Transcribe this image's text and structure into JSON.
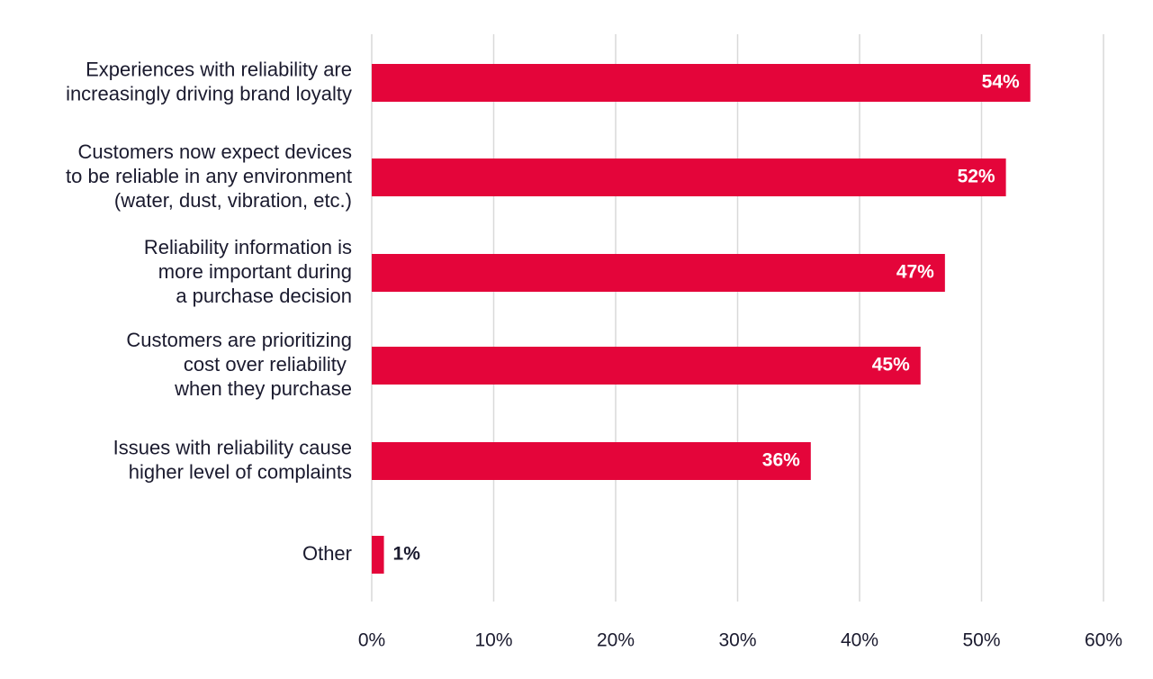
{
  "chart_data": {
    "type": "bar",
    "orientation": "horizontal",
    "title": "",
    "xlabel": "",
    "ylabel": "",
    "xlim": [
      0,
      60
    ],
    "ticks": [
      0,
      10,
      20,
      30,
      40,
      50,
      60
    ],
    "tick_labels": [
      "0%",
      "10%",
      "20%",
      "30%",
      "40%",
      "50%",
      "60%"
    ],
    "grid": "vertical",
    "legend": "none",
    "bar_color": "#e4053a",
    "categories": [
      [
        "Experiences with reliability are",
        "increasingly driving brand loyalty"
      ],
      [
        "Customers now expect devices",
        "to be reliable in any environment",
        "(water, dust, vibration, etc.)"
      ],
      [
        "Reliability information is",
        "more important during",
        "a purchase decision"
      ],
      [
        "Customers are prioritizing",
        "cost over reliability ",
        "when they purchase"
      ],
      [
        "Issues with reliability cause",
        "higher level of complaints"
      ],
      [
        "Other"
      ]
    ],
    "values": [
      54,
      52,
      47,
      45,
      36,
      1
    ],
    "value_labels": [
      "54%",
      "52%",
      "47%",
      "45%",
      "36%",
      "1%"
    ]
  }
}
